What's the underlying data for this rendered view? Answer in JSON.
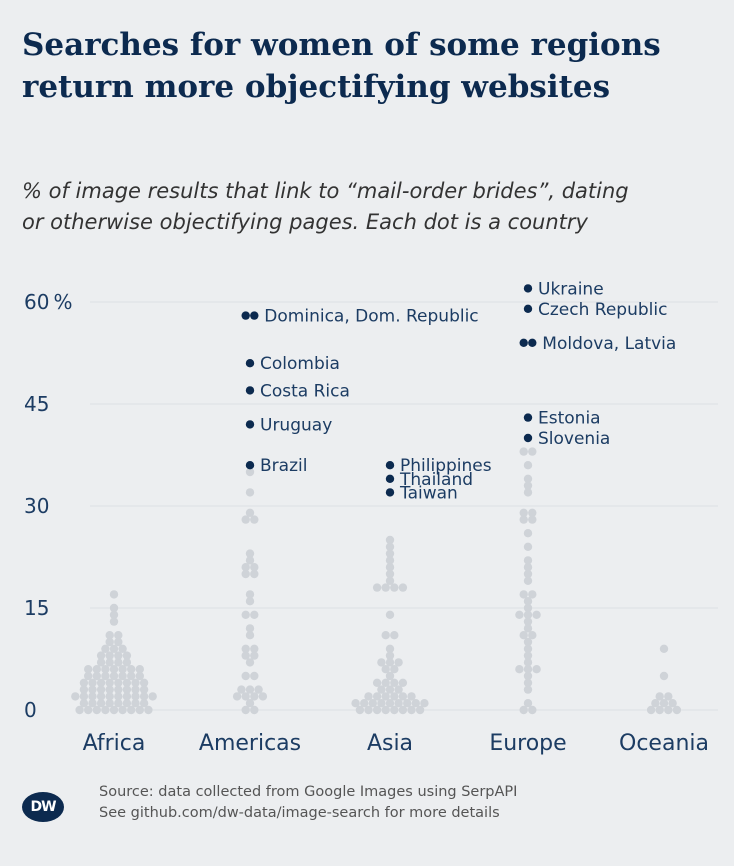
{
  "title_lines": [
    "Searches for women of some regions",
    "return more objectifying websites"
  ],
  "subtitle_lines": [
    "% of image results that link to “mail-order brides”, dating",
    "or otherwise objectifying pages. Each dot is a country"
  ],
  "footer": {
    "logo_text": "DW",
    "source_line_1": "Source: data collected from Google Images using SerpAPI",
    "source_line_2": "See github.com/dw-data/image-search for more details"
  },
  "colors": {
    "background": "#eceef0",
    "highlight_dot": "#0c2a4f",
    "other_dot": "#cfd3d8",
    "gridline": "#dde0e4",
    "text": "#1c3c63"
  },
  "chart_data": {
    "type": "scatter",
    "subtype": "beeswarm",
    "categories": [
      "Africa",
      "Americas",
      "Asia",
      "Europe",
      "Oceania"
    ],
    "ylabel": "",
    "ylim": [
      0,
      65
    ],
    "yticks": [
      0,
      15,
      30,
      45,
      60
    ],
    "ytick_labels": [
      "0",
      "15",
      "30",
      "45",
      "60 %"
    ],
    "grid": true,
    "highlighted": [
      {
        "category": "Americas",
        "countries": [
          "Dominica",
          "Dom. Republic"
        ],
        "label": "Dominica, Dom. Republic",
        "value": 58
      },
      {
        "category": "Americas",
        "countries": [
          "Colombia"
        ],
        "label": "Colombia",
        "value": 51
      },
      {
        "category": "Americas",
        "countries": [
          "Costa Rica"
        ],
        "label": "Costa Rica",
        "value": 47
      },
      {
        "category": "Americas",
        "countries": [
          "Uruguay"
        ],
        "label": "Uruguay",
        "value": 42
      },
      {
        "category": "Americas",
        "countries": [
          "Brazil"
        ],
        "label": "Brazil",
        "value": 36
      },
      {
        "category": "Asia",
        "countries": [
          "Philippines"
        ],
        "label": "Philippines",
        "value": 36
      },
      {
        "category": "Asia",
        "countries": [
          "Thailand"
        ],
        "label": "Thailand",
        "value": 34
      },
      {
        "category": "Asia",
        "countries": [
          "Taiwan"
        ],
        "label": "Taiwan",
        "value": 32
      },
      {
        "category": "Europe",
        "countries": [
          "Ukraine"
        ],
        "label": "Ukraine",
        "value": 62
      },
      {
        "category": "Europe",
        "countries": [
          "Czech Republic"
        ],
        "label": "Czech Republic",
        "value": 59
      },
      {
        "category": "Europe",
        "countries": [
          "Moldova",
          "Latvia"
        ],
        "label": "Moldova, Latvia",
        "value": 54
      },
      {
        "category": "Europe",
        "countries": [
          "Estonia"
        ],
        "label": "Estonia",
        "value": 43
      },
      {
        "category": "Europe",
        "countries": [
          "Slovenia"
        ],
        "label": "Slovenia",
        "value": 40
      }
    ],
    "other_values": {
      "Africa": [
        17,
        15,
        14,
        13,
        11,
        11,
        10,
        10,
        9,
        9,
        9,
        8,
        8,
        8,
        8,
        7,
        7,
        7,
        7,
        6,
        6,
        6,
        6,
        6,
        6,
        6,
        5,
        5,
        5,
        5,
        5,
        5,
        5,
        4,
        4,
        4,
        4,
        4,
        4,
        4,
        4,
        3,
        3,
        3,
        3,
        3,
        3,
        3,
        3,
        2,
        2,
        2,
        2,
        2,
        2,
        2,
        2,
        2,
        2,
        1,
        1,
        1,
        1,
        1,
        1,
        1,
        1,
        0,
        0,
        0,
        0,
        0,
        0,
        0,
        0,
        0
      ],
      "Americas": [
        35,
        32,
        29,
        28,
        28,
        23,
        22,
        21,
        21,
        20,
        20,
        17,
        16,
        14,
        14,
        12,
        11,
        9,
        9,
        8,
        8,
        7,
        5,
        5,
        3,
        3,
        3,
        2,
        2,
        2,
        2,
        1,
        0,
        0
      ],
      "Asia": [
        25,
        24,
        23,
        22,
        21,
        20,
        19,
        18,
        18,
        18,
        18,
        14,
        11,
        11,
        9,
        8,
        7,
        7,
        7,
        6,
        6,
        5,
        4,
        4,
        4,
        4,
        3,
        3,
        3,
        2,
        2,
        2,
        2,
        2,
        2,
        1,
        1,
        1,
        1,
        1,
        1,
        1,
        1,
        1,
        0,
        0,
        0,
        0,
        0,
        0,
        0,
        0
      ],
      "Europe": [
        38,
        38,
        36,
        34,
        33,
        32,
        29,
        29,
        28,
        28,
        26,
        24,
        22,
        21,
        20,
        19,
        17,
        17,
        16,
        15,
        14,
        14,
        14,
        13,
        12,
        11,
        11,
        10,
        9,
        8,
        7,
        6,
        6,
        6,
        5,
        4,
        3,
        1,
        0,
        0
      ],
      "Oceania": [
        9,
        5,
        2,
        2,
        1,
        1,
        1,
        0,
        0,
        0,
        0
      ]
    }
  }
}
